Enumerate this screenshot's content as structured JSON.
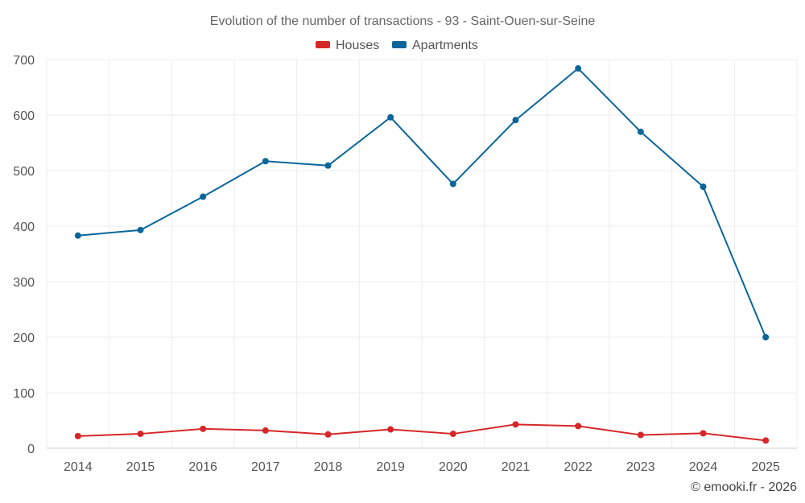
{
  "chart_data": {
    "type": "line",
    "title": "Evolution of the number of transactions - 93 - Saint-Ouen-sur-Seine",
    "categories": [
      "2014",
      "2015",
      "2016",
      "2017",
      "2018",
      "2019",
      "2020",
      "2021",
      "2022",
      "2023",
      "2024",
      "2025"
    ],
    "series": [
      {
        "name": "Houses",
        "color": "#d62728",
        "values": [
          22,
          26,
          35,
          32,
          25,
          34,
          26,
          43,
          40,
          24,
          27,
          14
        ]
      },
      {
        "name": "Apartments",
        "color": "#0a6699",
        "values": [
          383,
          393,
          453,
          517,
          509,
          596,
          476,
          591,
          684,
          570,
          471,
          200
        ]
      }
    ],
    "ylim": [
      0,
      700
    ],
    "yticks": [
      0,
      100,
      200,
      300,
      400,
      500,
      600,
      700
    ],
    "xlabel": "",
    "ylabel": "",
    "grid": true,
    "legend_position": "top-center"
  },
  "credit": "© emooki.fr - 2026"
}
